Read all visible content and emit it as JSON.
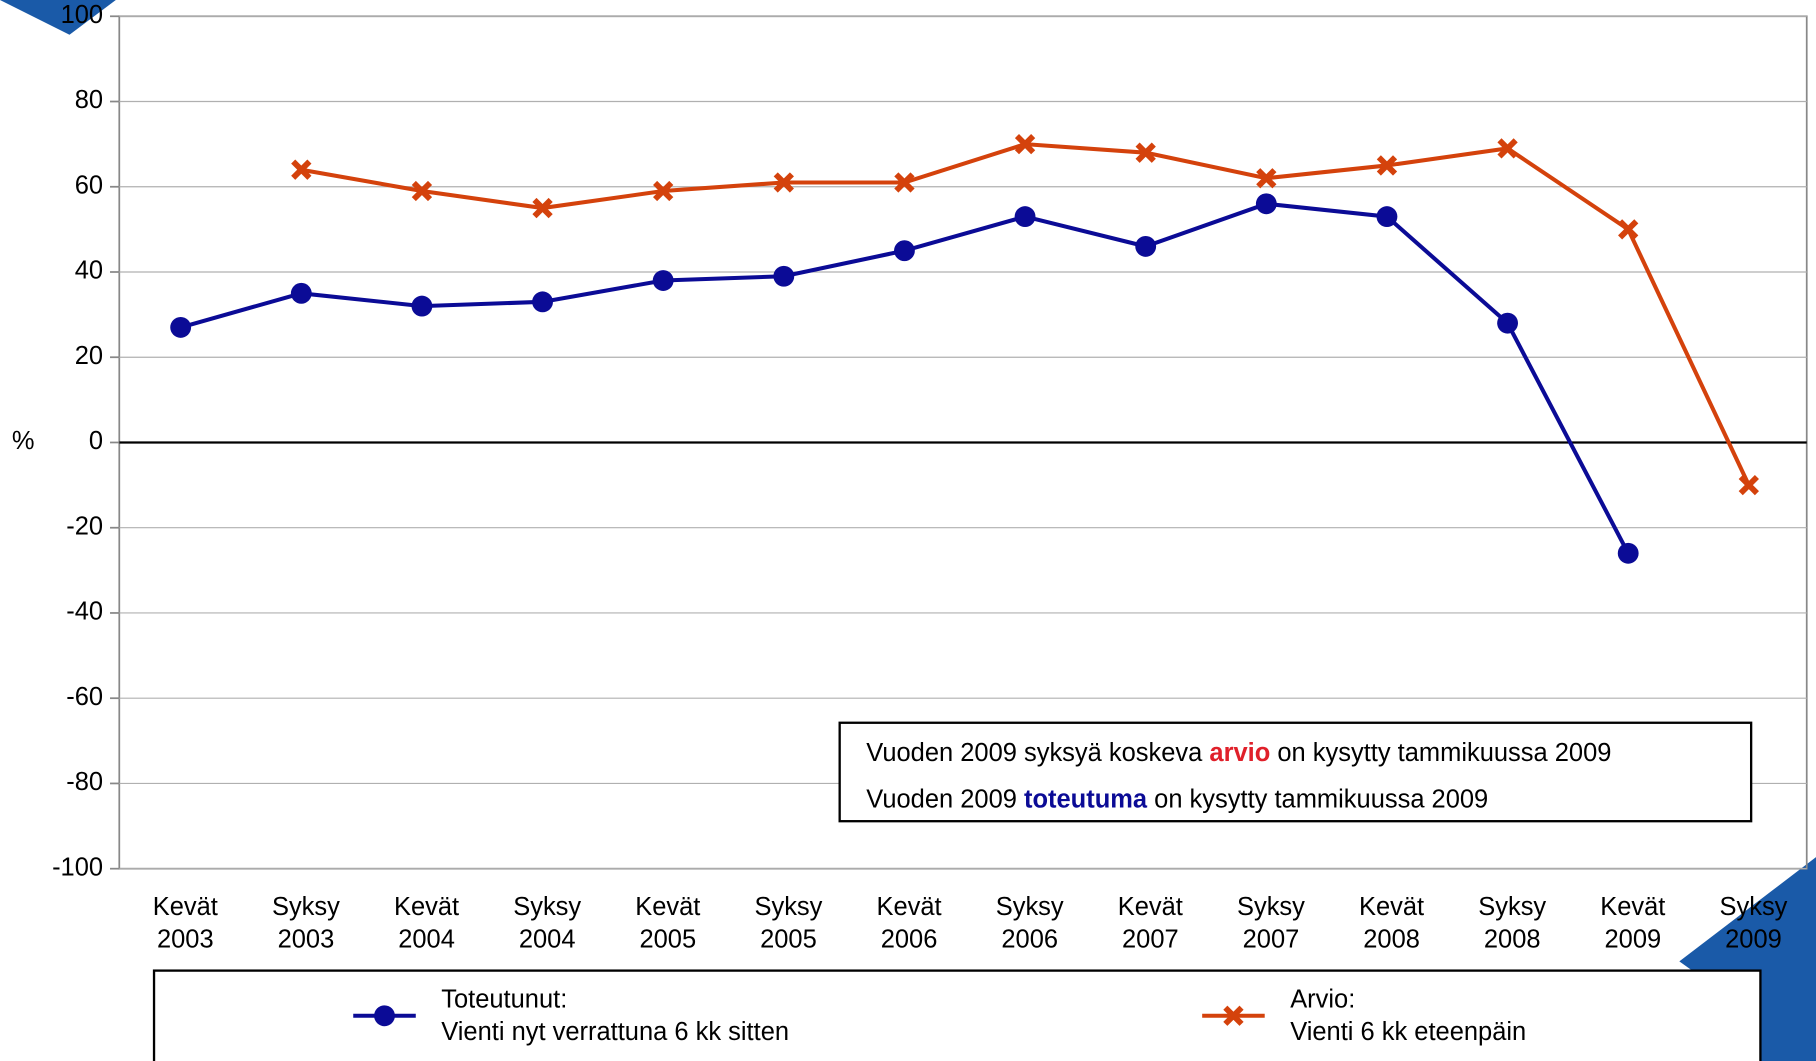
{
  "chart_data": {
    "type": "line",
    "y_label": "%",
    "categories": [
      "Kevät 2003",
      "Syksy 2003",
      "Kevät 2004",
      "Syksy 2004",
      "Kevät 2005",
      "Syksy 2005",
      "Kevät 2006",
      "Syksy 2006",
      "Kevät 2007",
      "Syksy 2007",
      "Kevät 2008",
      "Syksy 2008",
      "Kevät 2009",
      "Syksy 2009"
    ],
    "series": [
      {
        "name": "Toteutunut:\nVienti nyt verrattuna 6 kk sitten",
        "color": "#0b0b96",
        "marker": "circle",
        "values": [
          27,
          35,
          32,
          33,
          38,
          39,
          45,
          53,
          46,
          56,
          53,
          28,
          -26,
          null
        ]
      },
      {
        "name": "Arvio:\nVienti 6 kk eteenpäin",
        "color": "#d4420c",
        "marker": "x",
        "values": [
          null,
          64,
          59,
          55,
          59,
          61,
          61,
          70,
          68,
          62,
          65,
          69,
          50,
          -10
        ]
      }
    ],
    "ylim": [
      -100,
      100
    ],
    "yticks": [
      -100,
      -80,
      -60,
      -40,
      -20,
      0,
      20,
      40,
      60,
      80,
      100
    ],
    "grid": true,
    "annotation": [
      [
        "Vuoden 2009 syksyä koskeva ",
        "arvio",
        " on kysytty tammikuussa 2009"
      ],
      [
        "Vuoden 2009 ",
        "toteutuma",
        " on kysytty tammikuussa 2009"
      ]
    ]
  }
}
